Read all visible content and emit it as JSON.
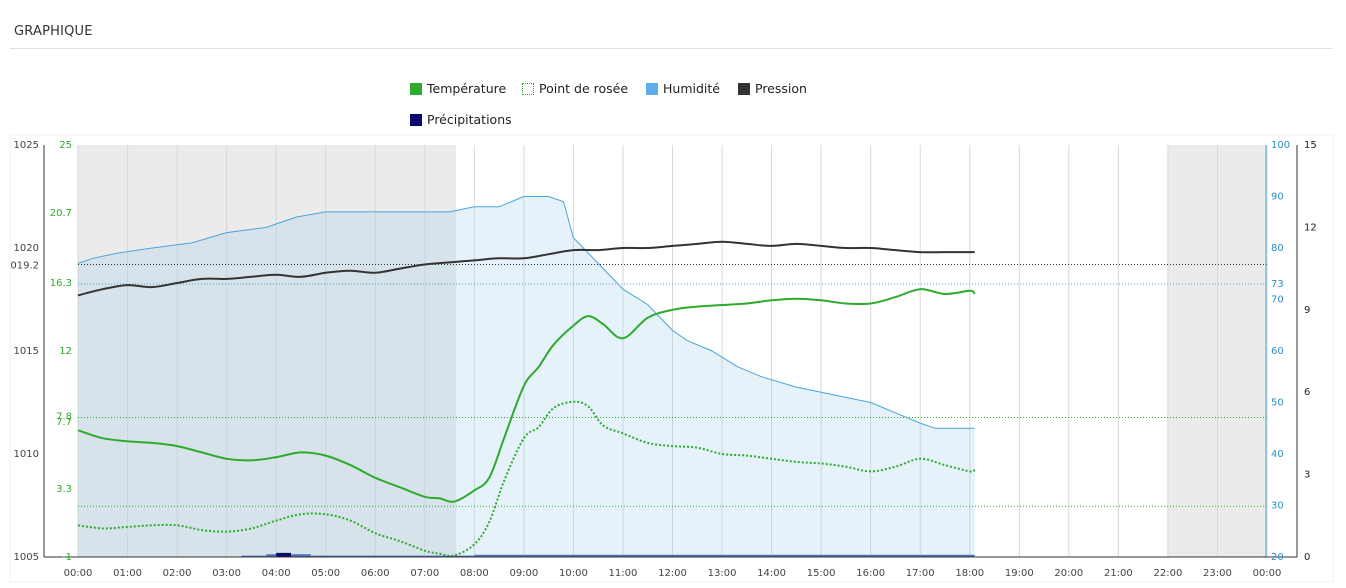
{
  "header": {
    "title": "GRAPHIQUE"
  },
  "colors": {
    "temperature": "#2eaa2e",
    "dew_point": "#2eaa2e",
    "humidity": "#4aa5d8",
    "pressure": "#333333",
    "precipitation": "#0a0a6e",
    "night": "#ebebeb"
  },
  "legend": {
    "items": [
      {
        "label": "Température",
        "swatch": "solid",
        "color": "#2eaa2e",
        "icon": "green-square-icon"
      },
      {
        "label": "Point de rosée",
        "swatch": "dotted",
        "color": "#2eaa2e",
        "icon": "dotted-square-icon"
      },
      {
        "label": "Humidité",
        "swatch": "solid",
        "color": "#5aaef0",
        "icon": "blue-square-icon"
      },
      {
        "label": "Pression",
        "swatch": "solid",
        "color": "#333333",
        "icon": "dark-square-icon"
      },
      {
        "label": "Précipitations",
        "swatch": "solid",
        "color": "#0a0a6e",
        "icon": "navy-square-icon"
      }
    ]
  },
  "chart_data": {
    "type": "line",
    "x_labels": [
      "00:00",
      "01:00",
      "02:00",
      "03:00",
      "04:00",
      "05:00",
      "06:00",
      "07:00",
      "08:00",
      "09:00",
      "10:00",
      "11:00",
      "12:00",
      "13:00",
      "14:00",
      "15:00",
      "16:00",
      "17:00",
      "18:00",
      "19:00",
      "20:00",
      "21:00",
      "22:00",
      "23:00",
      "00:00"
    ],
    "night_periods": [
      [
        "00:00",
        "07:38"
      ],
      [
        "22:00",
        "24:00"
      ]
    ],
    "grid": true,
    "axes": {
      "pressure": {
        "range": [
          1005,
          1025
        ],
        "ticks": [
          "1005",
          "1010",
          "1015",
          "1020",
          "1025"
        ],
        "marker": "019.2",
        "marker_value": 1019.2
      },
      "temperature": {
        "range": [
          -1,
          25
        ],
        "ticks": [
          "-1",
          "3.3",
          "7.7",
          "7.8",
          "12",
          "16.3",
          "20.7",
          "25"
        ]
      },
      "humidity": {
        "range": [
          20,
          100
        ],
        "ticks": [
          "20",
          "30",
          "40",
          "50",
          "60",
          "70",
          "73",
          "80",
          "90",
          "100"
        ]
      },
      "precipitation": {
        "range": [
          0,
          15
        ],
        "ticks": [
          "0",
          "3",
          "6",
          "9",
          "12",
          "15"
        ]
      }
    },
    "reference_lines": [
      {
        "axis": "pressure",
        "value": 1019.2,
        "color": "#333333"
      },
      {
        "axis": "humidity",
        "value": 73,
        "color": "#4aa5d8"
      },
      {
        "axis": "temperature",
        "value": 7.8,
        "color": "#2eaa2e"
      },
      {
        "axis": "temperature",
        "value": 2.2,
        "color": "#2eaa2e"
      }
    ],
    "series": [
      {
        "name": "Humidité",
        "axis": "humidity",
        "style": "area",
        "x": [
          0,
          0.3,
          0.8,
          1.5,
          2.3,
          3,
          3.8,
          4.4,
          5,
          6,
          7.5,
          8,
          8.5,
          9,
          9.5,
          9.8,
          10,
          10.5,
          11,
          11.5,
          12,
          12.3,
          12.8,
          13.3,
          13.8,
          14.5,
          15,
          15.5,
          16,
          16.5,
          17,
          17.3,
          17.8,
          18.1
        ],
        "y": [
          77,
          78,
          79,
          80,
          81,
          83,
          84,
          86,
          87,
          87,
          87,
          88,
          88,
          90,
          90,
          89,
          82,
          77,
          72,
          69,
          64,
          62,
          60,
          57,
          55,
          53,
          52,
          51,
          50,
          48,
          46,
          45,
          45,
          45
        ]
      },
      {
        "name": "Pression",
        "axis": "pressure",
        "style": "line",
        "x": [
          0,
          0.5,
          1,
          1.5,
          2,
          2.5,
          3,
          3.5,
          4,
          4.5,
          5,
          5.5,
          6,
          6.5,
          7,
          7.5,
          8,
          8.5,
          9,
          9.5,
          10,
          10.5,
          11,
          11.5,
          12,
          12.5,
          13,
          13.5,
          14,
          14.5,
          15,
          15.5,
          16,
          16.5,
          17,
          17.5,
          18,
          18.1
        ],
        "y": [
          1017.7,
          1018.0,
          1018.2,
          1018.1,
          1018.3,
          1018.5,
          1018.5,
          1018.6,
          1018.7,
          1018.6,
          1018.8,
          1018.9,
          1018.8,
          1019.0,
          1019.2,
          1019.3,
          1019.4,
          1019.5,
          1019.5,
          1019.7,
          1019.9,
          1019.9,
          1020.0,
          1020.0,
          1020.1,
          1020.2,
          1020.3,
          1020.2,
          1020.1,
          1020.2,
          1020.1,
          1020.0,
          1020.0,
          1019.9,
          1019.8,
          1019.8,
          1019.8,
          1019.8
        ]
      },
      {
        "name": "Température",
        "axis": "temperature",
        "style": "line",
        "x": [
          0,
          0.5,
          1,
          1.5,
          2,
          2.5,
          3,
          3.5,
          4,
          4.5,
          5,
          5.5,
          6,
          6.5,
          7,
          7.3,
          7.6,
          8,
          8.3,
          8.6,
          9,
          9.3,
          9.6,
          10,
          10.3,
          10.6,
          11,
          11.5,
          12,
          12.5,
          13,
          13.5,
          14,
          14.5,
          15,
          15.5,
          16,
          16.5,
          17,
          17.5,
          18,
          18.1
        ],
        "y": [
          7.0,
          6.5,
          6.3,
          6.2,
          6.0,
          5.6,
          5.2,
          5.1,
          5.3,
          5.6,
          5.4,
          4.8,
          4.0,
          3.4,
          2.8,
          2.7,
          2.5,
          3.2,
          4.0,
          6.5,
          9.8,
          11.0,
          12.4,
          13.6,
          14.2,
          13.7,
          12.8,
          14.1,
          14.6,
          14.8,
          14.9,
          15.0,
          15.2,
          15.3,
          15.2,
          15.0,
          15.0,
          15.4,
          15.9,
          15.6,
          15.8,
          15.6
        ]
      },
      {
        "name": "Point de rosée",
        "axis": "temperature",
        "style": "dotted",
        "x": [
          0,
          0.5,
          1,
          1.5,
          2,
          2.5,
          3,
          3.5,
          4,
          4.5,
          5,
          5.5,
          6,
          6.5,
          7,
          7.3,
          7.6,
          8,
          8.3,
          8.6,
          9,
          9.3,
          9.6,
          10,
          10.3,
          10.6,
          11,
          11.5,
          12,
          12.5,
          13,
          13.5,
          14,
          14.5,
          15,
          15.5,
          16,
          16.5,
          17,
          17.5,
          18,
          18.1
        ],
        "y": [
          1.0,
          0.8,
          0.9,
          1.0,
          1.0,
          0.7,
          0.6,
          0.8,
          1.3,
          1.7,
          1.7,
          1.3,
          0.5,
          0.0,
          -0.6,
          -0.8,
          -0.9,
          -0.2,
          1.2,
          3.8,
          6.5,
          7.2,
          8.4,
          8.8,
          8.5,
          7.3,
          6.8,
          6.2,
          6.0,
          5.9,
          5.5,
          5.4,
          5.2,
          5.0,
          4.9,
          4.7,
          4.4,
          4.7,
          5.2,
          4.8,
          4.4,
          4.5
        ]
      },
      {
        "name": "Précipitations",
        "axis": "precipitation",
        "style": "bar",
        "x": [
          3.3,
          3.8,
          4.0,
          4.3,
          4.7,
          5,
          6,
          7,
          8,
          9,
          10,
          11,
          12,
          13,
          14,
          15,
          16,
          17,
          18
        ],
        "y": [
          0.05,
          0.1,
          0.15,
          0.1,
          0.05,
          0.05,
          0.05,
          0.05,
          0.08,
          0.08,
          0.08,
          0.08,
          0.08,
          0.08,
          0.08,
          0.08,
          0.08,
          0.08,
          0.08
        ]
      }
    ]
  }
}
